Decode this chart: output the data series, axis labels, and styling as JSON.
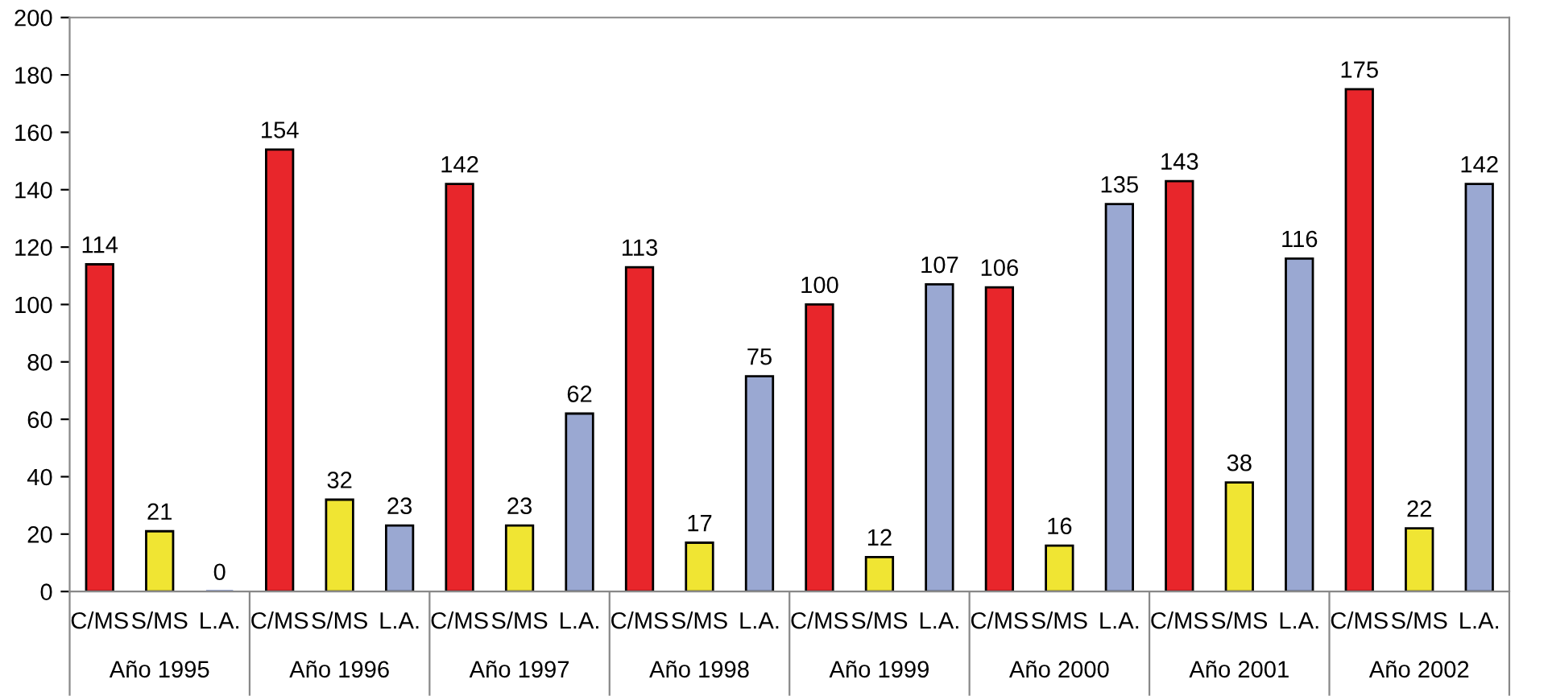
{
  "chart_data": {
    "type": "bar",
    "categories": [
      "Año 1995",
      "Año 1996",
      "Año 1997",
      "Año 1998",
      "Año 1999",
      "Año 2000",
      "Año 2001",
      "Año 2002"
    ],
    "series": [
      {
        "name": "C/MS",
        "color": "#e8262b",
        "values": [
          114,
          154,
          142,
          113,
          100,
          106,
          143,
          175
        ]
      },
      {
        "name": "S/MS",
        "color": "#f0e533",
        "values": [
          21,
          32,
          23,
          17,
          12,
          16,
          38,
          22
        ]
      },
      {
        "name": "L.A.",
        "color": "#9aa8d2",
        "values": [
          0,
          23,
          62,
          75,
          107,
          135,
          116,
          142
        ]
      }
    ],
    "ylim": [
      0,
      200
    ],
    "yticks": [
      0,
      20,
      40,
      60,
      80,
      100,
      120,
      140,
      160,
      180,
      200
    ],
    "grid": false,
    "legend": false,
    "data_labels": true
  }
}
